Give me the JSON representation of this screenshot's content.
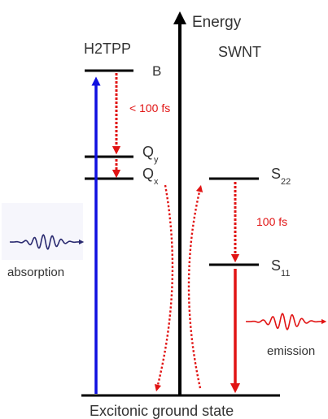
{
  "axis": {
    "label": "Energy"
  },
  "left_system": {
    "name": "H2TPP",
    "levels": {
      "b": "B",
      "qy_main": "Q",
      "qy_sub": "y",
      "qx_main": "Q",
      "qx_sub": "x"
    }
  },
  "right_system": {
    "name": "SWNT",
    "levels": {
      "s22_main": "S",
      "s22_sub": "22",
      "s11_main": "S",
      "s11_sub": "11"
    }
  },
  "relaxation_times": {
    "left": "< 100 fs",
    "right": "100 fs"
  },
  "labels": {
    "absorption": "absorption",
    "emission": "emission",
    "ground_state": "Excitonic ground state"
  },
  "colors": {
    "absorption_arrow": "#1010e0",
    "emission_arrow": "#e11414",
    "relaxation": "#e11414",
    "absorption_wave": "#2a2a70",
    "emission_wave": "#e11414",
    "axis": "#000000",
    "text_red": "#e11414"
  }
}
